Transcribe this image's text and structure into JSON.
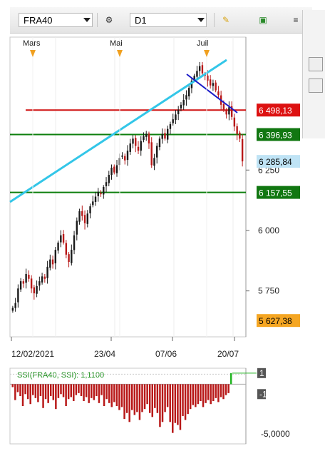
{
  "toolbar": {
    "symbol": "FRA40",
    "timeframe": "D1",
    "menu_icon": "≡"
  },
  "colors": {
    "bull": "#1a1a1a",
    "bear": "#b81818",
    "trendline_up": "#33c6e8",
    "trendline_down": "#1a1ac8",
    "resistance": "#d01010",
    "support": "#0d7f0d",
    "ssi_bar": "#b81818",
    "ssi_line": "#22b522"
  },
  "chart_data": [
    {
      "type": "candlestick",
      "symbol": "FRA40",
      "timeframe": "D1",
      "month_labels": [
        "Mars",
        "Mai",
        "Juil"
      ],
      "x_tick_labels": [
        "12/02/2021",
        "23/04",
        "07/06",
        "20/07"
      ],
      "y_tick_labels": [
        "6 250",
        "6 000",
        "5 750"
      ],
      "y_ticks": [
        6250,
        6000,
        5750
      ],
      "ylim": [
        5560,
        6800
      ],
      "price_tags": [
        {
          "label": "6 498,13",
          "value": 6498.13,
          "color": "#dd1111",
          "text_color": "#ffffff"
        },
        {
          "label": "6 396,93",
          "value": 6396.93,
          "color": "#117711",
          "text_color": "#ffffff"
        },
        {
          "label": "6 285,84",
          "value": 6285.84,
          "color": "#bfe3f5",
          "text_color": "#000000"
        },
        {
          "label": "6 157,55",
          "value": 6157.55,
          "color": "#117711",
          "text_color": "#ffffff"
        },
        {
          "label": "5 627,38",
          "value": 5627.38,
          "color": "#f5a623",
          "text_color": "#000000"
        }
      ],
      "horizontal_lines": [
        {
          "value": 6498.13,
          "color": "#d01010"
        },
        {
          "value": 6396.93,
          "color": "#0d7f0d"
        },
        {
          "value": 6157.55,
          "color": "#0d7f0d"
        }
      ],
      "closes": [
        5680,
        5700,
        5760,
        5790,
        5780,
        5820,
        5800,
        5760,
        5740,
        5770,
        5790,
        5810,
        5800,
        5850,
        5880,
        5860,
        5920,
        5950,
        5980,
        5950,
        5900,
        5870,
        5920,
        5980,
        6040,
        6080,
        6060,
        6030,
        6070,
        6100,
        6120,
        6140,
        6160,
        6150,
        6180,
        6200,
        6230,
        6260,
        6240,
        6270,
        6300,
        6310,
        6290,
        6330,
        6360,
        6380,
        6350,
        6330,
        6370,
        6390,
        6400,
        6360,
        6270,
        6300,
        6350,
        6380,
        6400,
        6380,
        6420,
        6440,
        6460,
        6480,
        6500,
        6520,
        6540,
        6560,
        6590,
        6620,
        6640,
        6660,
        6680,
        6650,
        6640,
        6620,
        6600,
        6610,
        6580,
        6560,
        6520,
        6500,
        6480,
        6510,
        6470,
        6430,
        6400,
        6380,
        6285.84
      ]
    },
    {
      "type": "bar",
      "title": "SSI(FRA40, SSI): 1,1100",
      "y_tick_labels": [
        "1",
        "-1",
        "-5,0000"
      ],
      "ylim": [
        -6,
        1.6
      ],
      "values": [
        -0.3,
        -1.6,
        -0.8,
        -1.2,
        -2.2,
        -1.0,
        -1.5,
        -2.0,
        -1.1,
        -1.4,
        -1.8,
        -1.2,
        -2.4,
        -1.5,
        -1.9,
        -1.2,
        -1.6,
        -2.5,
        -1.4,
        -1.0,
        -1.3,
        -2.2,
        -1.5,
        -1.3,
        -1.7,
        -1.1,
        -0.9,
        -1.2,
        -1.7,
        -1.3,
        -1.9,
        -1.4,
        -1.6,
        -1.2,
        -1.9,
        -1.1,
        -2.2,
        -1.5,
        -1.9,
        -2.3,
        -1.8,
        -2.2,
        -2.6,
        -2.3,
        -3.5,
        -2.9,
        -3.8,
        -2.6,
        -3.1,
        -2.8,
        -3.6,
        -2.8,
        -2.5,
        -2.0,
        -2.9,
        -3.3,
        -2.4,
        -2.9,
        -4.3,
        -3.8,
        -2.8,
        -2.3,
        -3.8,
        -4.9,
        -3.9,
        -4.1,
        -4.6,
        -3.2,
        -3.6,
        -3.0,
        -2.5,
        -2.1,
        -2.3,
        -2.0,
        -1.7,
        -2.3,
        -1.9,
        -1.6,
        -2.0,
        -1.7,
        -1.4,
        -1.8,
        -1.3,
        -1.5,
        -1.1,
        -0.9,
        1.11
      ]
    }
  ]
}
